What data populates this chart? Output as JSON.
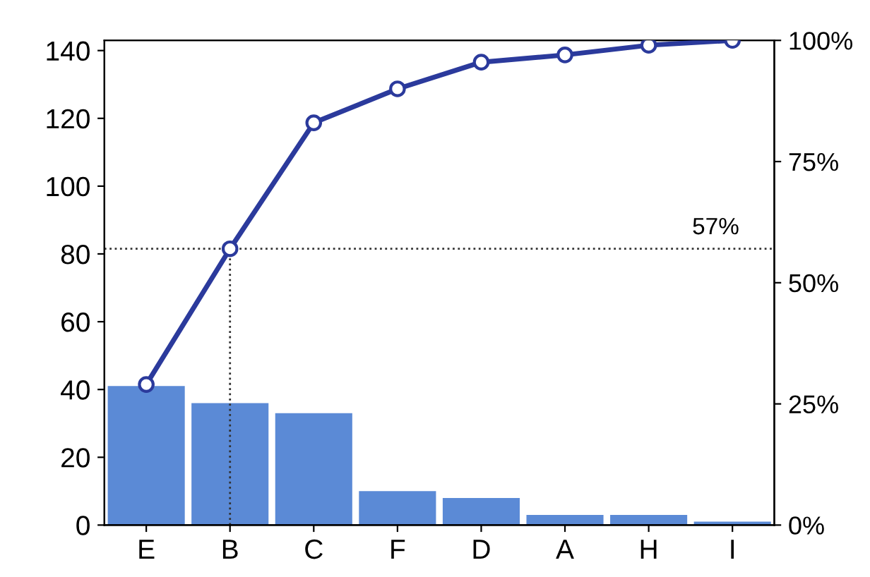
{
  "chart_data": {
    "type": "bar",
    "categories": [
      "E",
      "B",
      "C",
      "F",
      "D",
      "A",
      "H",
      "I"
    ],
    "series": [
      {
        "color": "#5b8ad6",
        "values": [
          41,
          36,
          33,
          10,
          8,
          3,
          3,
          1
        ]
      },
      {
        "type": "line",
        "axis": "y2",
        "color": "#2b3a9c",
        "marker": "circle",
        "values": [
          29,
          57,
          83,
          90,
          95.5,
          97,
          99,
          100
        ]
      }
    ],
    "ylim": [
      0,
      143
    ],
    "yticks": [
      0,
      20,
      40,
      60,
      80,
      100,
      120,
      140
    ],
    "y2lim": [
      0,
      100
    ],
    "y2ticks": [
      {
        "value": 0,
        "label": "0%"
      },
      {
        "value": 25,
        "label": "25%"
      },
      {
        "value": 50,
        "label": "50%"
      },
      {
        "value": 75,
        "label": "75%"
      },
      {
        "value": 100,
        "label": "100%"
      }
    ],
    "ref_lines": [
      {
        "axis": "y2",
        "value": 57,
        "label": "57%",
        "line_style": "dotted",
        "color": "#333333"
      },
      {
        "axis": "x",
        "value": "B",
        "line_style": "dotted",
        "color": "#333333"
      }
    ],
    "grid": false,
    "legend": false
  }
}
